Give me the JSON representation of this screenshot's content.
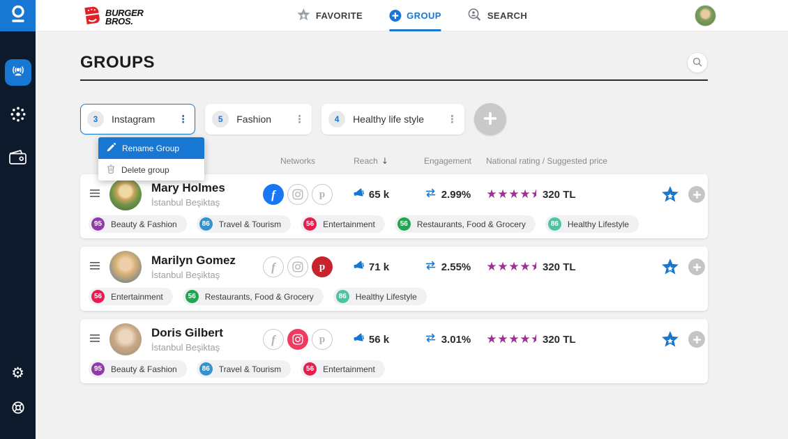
{
  "colors": {
    "primary": "#1877d2",
    "facebook": "#1877f2",
    "instagram": "#ee3b5f",
    "pinterest": "#c8232c",
    "stars": "#9c3194"
  },
  "sidebar": {
    "items": [
      {
        "icon": "broadcast-influencer-icon",
        "active": true
      },
      {
        "icon": "network-dots-icon",
        "active": false
      },
      {
        "icon": "wallet-icon",
        "active": false
      }
    ],
    "bottom_items": [
      {
        "icon": "settings-gear-icon"
      },
      {
        "icon": "help-lifebuoy-icon"
      }
    ],
    "gear_glyph": "⚙"
  },
  "topnav": {
    "brand_line1": "BURGER",
    "brand_line2": "BROS.",
    "tabs": [
      {
        "label": "FAVORITE",
        "icon": "star-icon",
        "active": false
      },
      {
        "label": "GROUP",
        "icon": "plus-circle-icon",
        "active": true
      },
      {
        "label": "SEARCH",
        "icon": "search-person-icon",
        "active": false
      }
    ]
  },
  "page": {
    "title": "GROUPS"
  },
  "group_tabs": [
    {
      "count": "3",
      "label": "Instagram",
      "active": true
    },
    {
      "count": "5",
      "label": "Fashion",
      "active": false
    },
    {
      "count": "4",
      "label": "Healthy life style",
      "active": false
    }
  ],
  "context_menu": {
    "items": [
      {
        "label": "Rename Group",
        "icon": "pencil-icon",
        "highlighted": true
      },
      {
        "label": "Delete group",
        "icon": "trash-icon",
        "highlighted": false
      }
    ]
  },
  "table": {
    "headers": {
      "networks": "Networks",
      "reach": "Reach",
      "reach_sort": "↓",
      "engagement": "Engagement",
      "rating_price": "National rating / Suggested price"
    },
    "rows": [
      {
        "name": "Mary Holmes",
        "location": "İstanbul Beşiktaş",
        "networks": [
          {
            "name": "facebook",
            "active": true
          },
          {
            "name": "instagram",
            "active": false
          },
          {
            "name": "pinterest",
            "active": false
          }
        ],
        "reach": "65 k",
        "engagement": "2.99%",
        "stars": 4.5,
        "price": "320 TL",
        "tags": [
          {
            "score": "95",
            "label": "Beauty & Fashion",
            "color": "#8e3ca6"
          },
          {
            "score": "86",
            "label": "Travel & Tourism",
            "color": "#3493c8"
          },
          {
            "score": "56",
            "label": "Entertainment",
            "color": "#e51e50"
          },
          {
            "score": "56",
            "label": "Restaurants, Food & Grocery",
            "color": "#23a550"
          },
          {
            "score": "86",
            "label": "Healthy Lifestyle",
            "color": "#4fc3a1"
          }
        ]
      },
      {
        "name": "Marilyn Gomez",
        "location": "İstanbul Beşiktaş",
        "networks": [
          {
            "name": "facebook",
            "active": false
          },
          {
            "name": "instagram",
            "active": false
          },
          {
            "name": "pinterest",
            "active": true
          }
        ],
        "reach": "71 k",
        "engagement": "2.55%",
        "stars": 4.5,
        "price": "320 TL",
        "tags": [
          {
            "score": "56",
            "label": "Entertainment",
            "color": "#e51e50"
          },
          {
            "score": "56",
            "label": "Restaurants, Food & Grocery",
            "color": "#23a550"
          },
          {
            "score": "86",
            "label": "Healthy Lifestyle",
            "color": "#4fc3a1"
          }
        ]
      },
      {
        "name": "Doris Gilbert",
        "location": "İstanbul Beşiktaş",
        "networks": [
          {
            "name": "facebook",
            "active": false
          },
          {
            "name": "instagram",
            "active": true
          },
          {
            "name": "pinterest",
            "active": false
          }
        ],
        "reach": "56 k",
        "engagement": "3.01%",
        "stars": 4.5,
        "price": "320 TL",
        "tags": [
          {
            "score": "95",
            "label": "Beauty & Fashion",
            "color": "#8e3ca6"
          },
          {
            "score": "86",
            "label": "Travel & Tourism",
            "color": "#3493c8"
          },
          {
            "score": "56",
            "label": "Entertainment",
            "color": "#e51e50"
          }
        ]
      }
    ]
  }
}
